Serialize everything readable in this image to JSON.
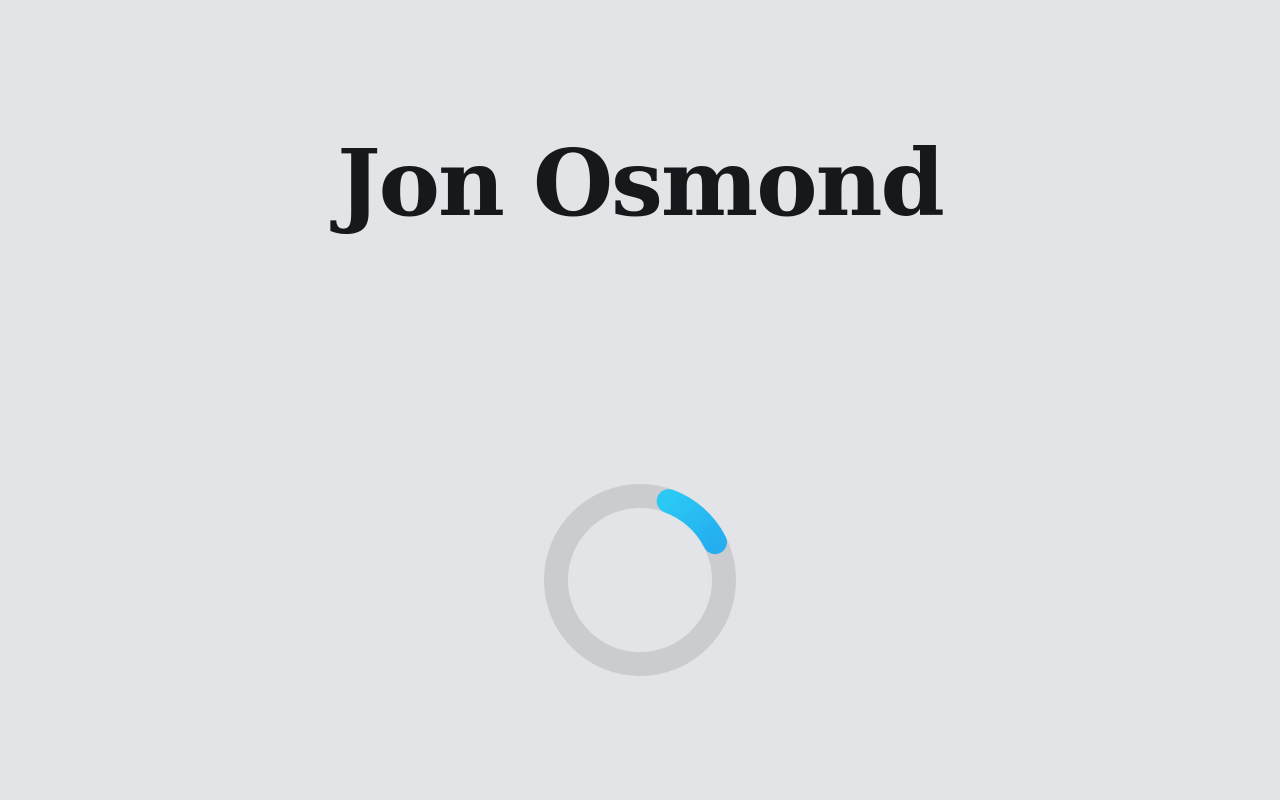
{
  "page": {
    "title": "Jon Osmond"
  },
  "loader": {
    "icon": "loading-spinner-icon",
    "progress_arc_fraction": 0.12,
    "track_color": "#cbccd0",
    "arc_color_start": "#2bc8f4",
    "arc_color_end": "#25aef0"
  },
  "colors": {
    "background": "#e2e4e8",
    "title_text": "#16181c"
  }
}
